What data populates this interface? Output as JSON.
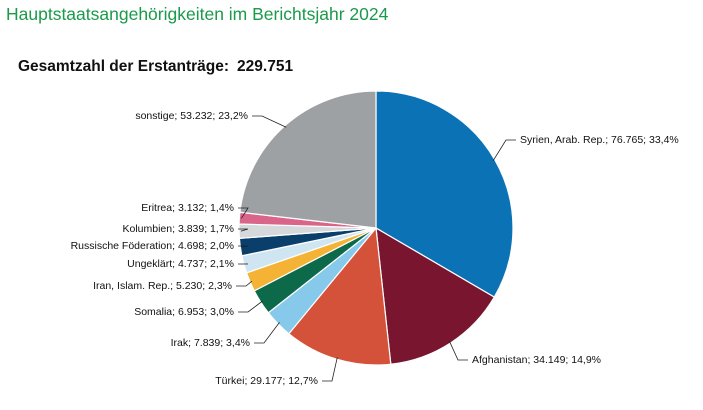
{
  "header": {
    "title": "Hauptstaatsangehörigkeiten im Berichtsjahr 2024",
    "subtitle_label": "Gesamtzahl der Erstanträge:",
    "subtitle_total": "229.751"
  },
  "chart_data": {
    "type": "pie",
    "title": "Hauptstaatsangehörigkeiten im Berichtsjahr 2024",
    "total": 229751,
    "start_direction": "12 o'clock, clockwise",
    "slices": [
      {
        "name": "Syrien, Arab. Rep.",
        "value": 76765,
        "percent": 33.4,
        "label": "Syrien, Arab. Rep.; 76.765; 33,4%",
        "color": "#0a72b5"
      },
      {
        "name": "Afghanistan",
        "value": 34149,
        "percent": 14.9,
        "label": "Afghanistan; 34.149; 14,9%",
        "color": "#7a1530"
      },
      {
        "name": "Türkei",
        "value": 29177,
        "percent": 12.7,
        "label": "Türkei; 29.177; 12,7%",
        "color": "#d4523a"
      },
      {
        "name": "Irak",
        "value": 7839,
        "percent": 3.4,
        "label": "Irak; 7.839; 3,4%",
        "color": "#86c9ea"
      },
      {
        "name": "Somalia",
        "value": 6953,
        "percent": 3.0,
        "label": "Somalia; 6.953; 3,0%",
        "color": "#0c6a4a"
      },
      {
        "name": "Iran, Islam. Rep.",
        "value": 5230,
        "percent": 2.3,
        "label": "Iran, Islam. Rep.; 5.230; 2,3%",
        "color": "#f4b335"
      },
      {
        "name": "Ungeklärt",
        "value": 4737,
        "percent": 2.1,
        "label": "Ungeklärt; 4.737; 2,1%",
        "color": "#cfe6f2"
      },
      {
        "name": "Russische Föderation",
        "value": 4698,
        "percent": 2.0,
        "label": "Russische Föderation; 4.698; 2,0%",
        "color": "#0a3e6b"
      },
      {
        "name": "Kolumbien",
        "value": 3839,
        "percent": 1.7,
        "label": "Kolumbien; 3.839; 1,7%",
        "color": "#d6d9dc"
      },
      {
        "name": "Eritrea",
        "value": 3132,
        "percent": 1.4,
        "label": "Eritrea; 3.132; 1,4%",
        "color": "#d9658a"
      },
      {
        "name": "sonstige",
        "value": 53232,
        "percent": 23.2,
        "label": "sonstige; 53.232; 23,2%",
        "color": "#9ea1a4"
      }
    ]
  }
}
